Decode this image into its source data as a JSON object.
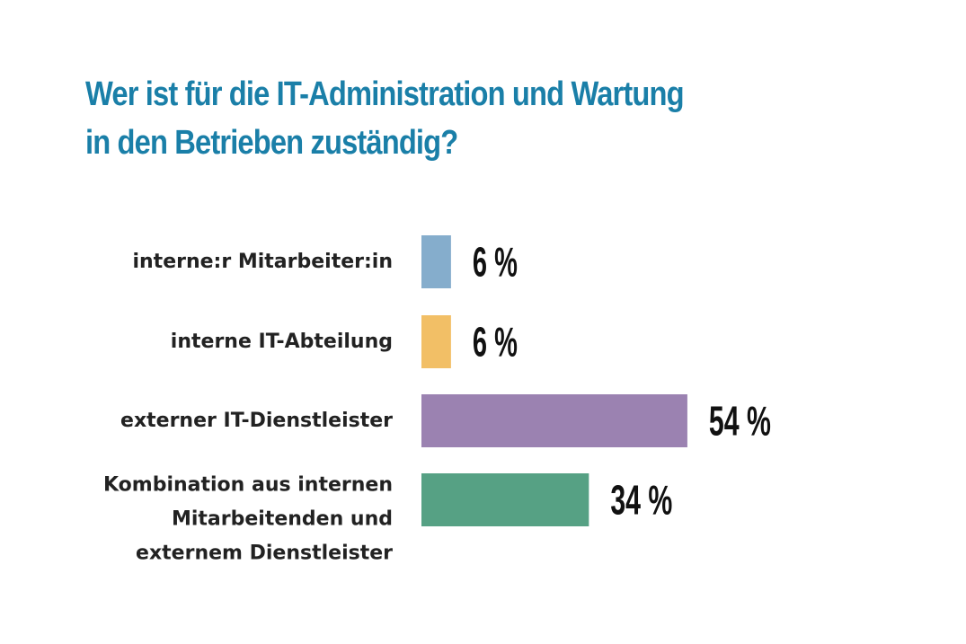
{
  "chart_data": {
    "type": "bar",
    "orientation": "horizontal",
    "title": "Wer ist für die IT-Administration und Wartung in den Betrieben zuständig?",
    "title_lines": [
      "Wer ist für die IT-Administration und Wartung",
      "in den Betrieben zuständig?"
    ],
    "categories": [
      [
        "interne:r Mitarbeiter:in"
      ],
      [
        "interne IT-Abteilung"
      ],
      [
        "externer IT-Dienstleister"
      ],
      [
        "Kombination aus internen",
        "Mitarbeitenden und",
        "externem Dienstleister"
      ]
    ],
    "values": [
      6,
      6,
      54,
      34
    ],
    "value_labels": [
      "6 %",
      "6 %",
      "54 %",
      "34 %"
    ],
    "unit": "%",
    "xlim": [
      0,
      60
    ],
    "colors": [
      "#85adcc",
      "#f2bf66",
      "#9b82b1",
      "#56a184"
    ],
    "title_color": "#1a7fa8",
    "grid": false,
    "legend": "none"
  }
}
